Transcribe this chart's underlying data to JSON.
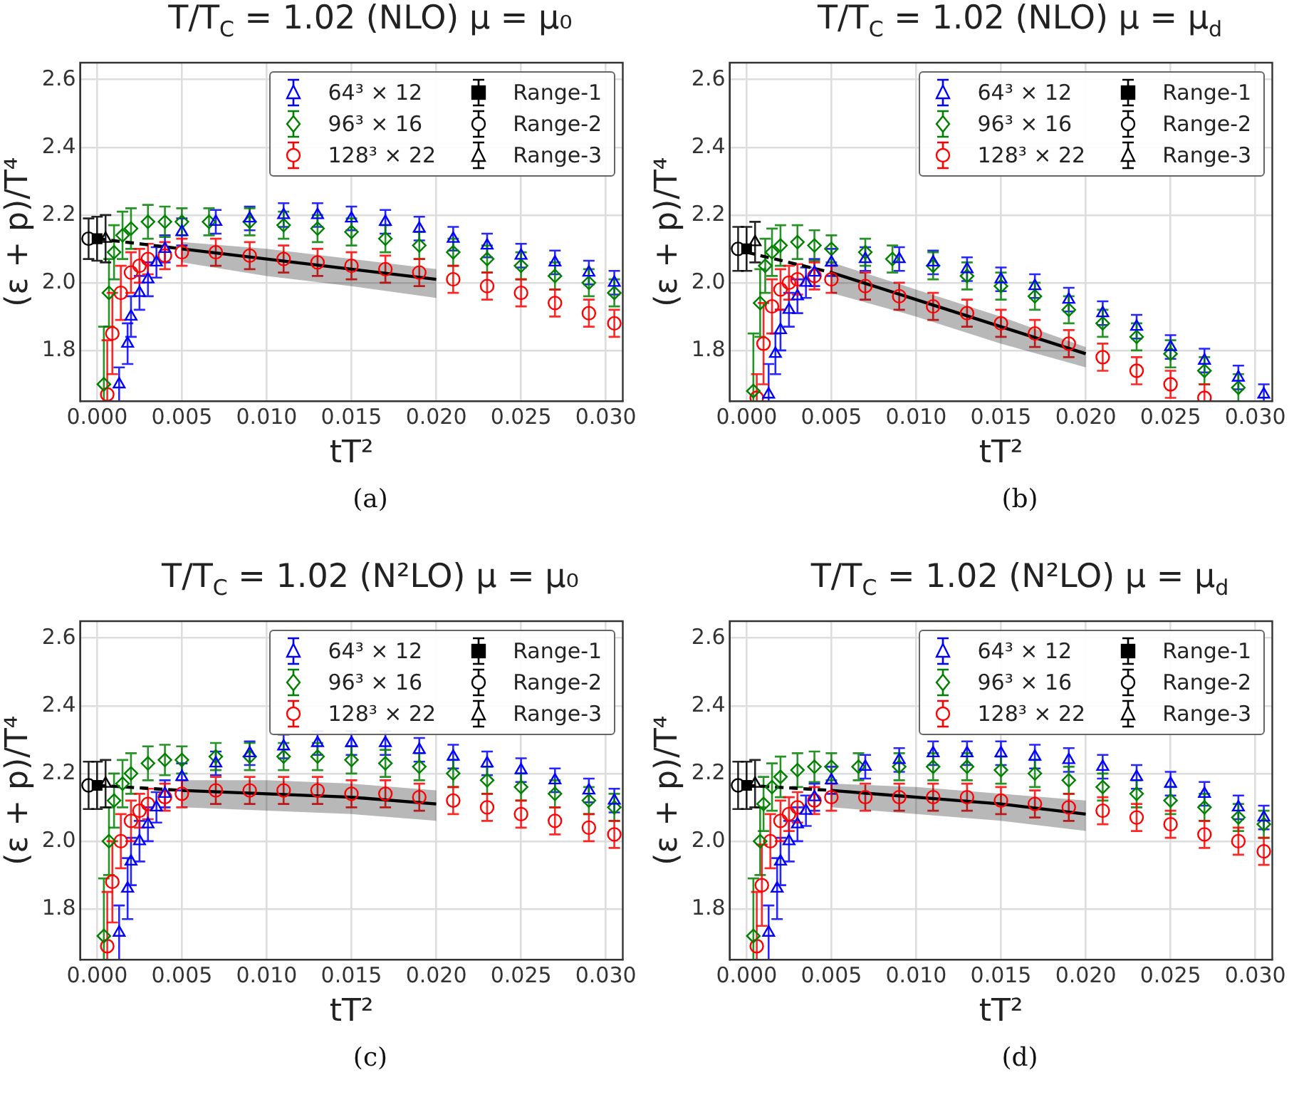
{
  "chart_data": [
    {
      "type": "scatter",
      "title": "T/T$_{C}$ = 1.02 (NLO) μ = μ₀",
      "xlabel": "tT²",
      "ylabel": "(ε + p)/T⁴",
      "xlim": [
        -0.001,
        0.031
      ],
      "ylim": [
        1.65,
        2.65
      ],
      "xticks": [
        {
          "value": 0,
          "label": "0.000"
        },
        {
          "value": 0.005,
          "label": "0.005"
        },
        {
          "value": 0.01,
          "label": "0.010"
        },
        {
          "value": 0.015,
          "label": "0.015"
        },
        {
          "value": 0.02,
          "label": "0.020"
        },
        {
          "value": 0.025,
          "label": "0.025"
        },
        {
          "value": 0.03,
          "label": "0.030"
        }
      ],
      "yticks": [
        {
          "value": 1.8,
          "label": "1.8"
        },
        {
          "value": 2.0,
          "label": "2.0"
        },
        {
          "value": 2.2,
          "label": "2.2"
        },
        {
          "value": 2.4,
          "label": "2.4"
        },
        {
          "value": 2.6,
          "label": "2.6"
        }
      ],
      "grid": true,
      "legend": "top right",
      "annotations": [
        "(a)"
      ],
      "series": [
        {
          "name": "64³ × 12",
          "color": "#0000ff",
          "marker": "triangle",
          "x": [
            0.0013,
            0.0018,
            0.002,
            0.0025,
            0.003,
            0.0035,
            0.004,
            0.005,
            0.007,
            0.009,
            0.011,
            0.013,
            0.015,
            0.017,
            0.019,
            0.021,
            0.023,
            0.025,
            0.027,
            0.029,
            0.0305
          ],
          "values": [
            1.7,
            1.82,
            1.9,
            1.97,
            2.01,
            2.06,
            2.1,
            2.15,
            2.18,
            2.19,
            2.2,
            2.2,
            2.19,
            2.18,
            2.16,
            2.13,
            2.11,
            2.08,
            2.06,
            2.03,
            2.0
          ],
          "errors": [
            0.05,
            0.06,
            0.06,
            0.05,
            0.05,
            0.045,
            0.04,
            0.04,
            0.035,
            0.035,
            0.035,
            0.035,
            0.035,
            0.035,
            0.035,
            0.035,
            0.035,
            0.035,
            0.035,
            0.035,
            0.035
          ]
        },
        {
          "name": "96³ × 16",
          "color": "#008000",
          "marker": "diamond",
          "x": [
            0.0004,
            0.0007,
            0.001,
            0.0015,
            0.002,
            0.003,
            0.004,
            0.005,
            0.0066,
            0.009,
            0.011,
            0.013,
            0.015,
            0.017,
            0.019,
            0.021,
            0.023,
            0.025,
            0.027,
            0.029,
            0.0305
          ],
          "values": [
            1.7,
            1.97,
            2.09,
            2.14,
            2.16,
            2.18,
            2.18,
            2.18,
            2.18,
            2.18,
            2.17,
            2.16,
            2.15,
            2.13,
            2.11,
            2.09,
            2.07,
            2.05,
            2.02,
            2.0,
            1.97
          ],
          "errors": [
            [
              1.65,
              1.87
            ],
            0.1,
            0.08,
            0.07,
            0.06,
            0.05,
            0.045,
            0.04,
            0.04,
            0.04,
            0.04,
            0.04,
            0.04,
            0.04,
            0.04,
            0.04,
            0.04,
            0.04,
            0.04,
            0.04,
            0.04
          ]
        },
        {
          "name": "128³ × 22",
          "color": "#ff0000",
          "marker": "circle",
          "x": [
            0.0006,
            0.0009,
            0.0014,
            0.002,
            0.0025,
            0.003,
            0.004,
            0.005,
            0.007,
            0.009,
            0.011,
            0.013,
            0.015,
            0.017,
            0.019,
            0.021,
            0.023,
            0.025,
            0.027,
            0.029,
            0.0305
          ],
          "values": [
            1.67,
            1.85,
            1.97,
            2.03,
            2.05,
            2.07,
            2.08,
            2.09,
            2.09,
            2.08,
            2.07,
            2.06,
            2.05,
            2.04,
            2.03,
            2.01,
            1.99,
            1.97,
            1.94,
            1.91,
            1.88
          ],
          "errors": [
            [
              1.65,
              1.83
            ],
            0.12,
            0.08,
            0.06,
            0.05,
            0.045,
            0.04,
            0.04,
            0.04,
            0.04,
            0.04,
            0.04,
            0.04,
            0.04,
            0.04,
            0.04,
            0.04,
            0.04,
            0.04,
            0.04,
            0.04
          ]
        },
        {
          "name": "Range-1",
          "color": "#000000",
          "marker": "square",
          "x": [
            0
          ],
          "values": [
            2.13
          ],
          "errors": [
            0.065
          ]
        },
        {
          "name": "Range-2",
          "color": "#000000",
          "marker": "circle",
          "x": [
            -0.0005
          ],
          "values": [
            2.13
          ],
          "errors": [
            0.06
          ]
        },
        {
          "name": "Range-3",
          "color": "#000000",
          "marker": "triangle",
          "x": [
            0.0005
          ],
          "values": [
            2.13
          ],
          "errors": [
            0.07
          ]
        },
        {
          "type": "line",
          "color": "#000000",
          "marker": "none",
          "line_style": "solid",
          "x": [
            0.005,
            0.01,
            0.015,
            0.02
          ],
          "values": [
            2.1,
            2.07,
            2.04,
            2.01
          ],
          "lower": [
            2.06,
            2.02,
            1.99,
            1.955
          ],
          "upper": [
            2.12,
            2.1,
            2.07,
            2.04
          ]
        },
        {
          "type": "line",
          "color": "#000000",
          "marker": "none",
          "line_style": "dashed",
          "x": [
            0,
            0.005
          ],
          "values": [
            2.13,
            2.1
          ]
        }
      ]
    },
    {
      "type": "scatter",
      "title": "T/T$_{C}$ = 1.02 (NLO) μ = μ$_{d}$",
      "xlabel": "tT²",
      "ylabel": "(ε + p)/T⁴",
      "xlim": [
        -0.001,
        0.031
      ],
      "ylim": [
        1.65,
        2.65
      ],
      "xticks": [
        {
          "value": 0,
          "label": "0.000"
        },
        {
          "value": 0.005,
          "label": "0.005"
        },
        {
          "value": 0.01,
          "label": "0.010"
        },
        {
          "value": 0.015,
          "label": "0.015"
        },
        {
          "value": 0.02,
          "label": "0.020"
        },
        {
          "value": 0.025,
          "label": "0.025"
        },
        {
          "value": 0.03,
          "label": "0.030"
        }
      ],
      "yticks": [
        {
          "value": 1.8,
          "label": "1.8"
        },
        {
          "value": 2.0,
          "label": "2.0"
        },
        {
          "value": 2.2,
          "label": "2.2"
        },
        {
          "value": 2.4,
          "label": "2.4"
        },
        {
          "value": 2.6,
          "label": "2.6"
        }
      ],
      "grid": true,
      "legend": "top right",
      "annotations": [
        "(b)"
      ],
      "series": [
        {
          "name": "64³ × 12",
          "color": "#0000ff",
          "marker": "triangle",
          "x": [
            0.0013,
            0.0017,
            0.002,
            0.0025,
            0.003,
            0.0035,
            0.004,
            0.005,
            0.007,
            0.009,
            0.011,
            0.013,
            0.015,
            0.017,
            0.019,
            0.021,
            0.023,
            0.025,
            0.027,
            0.029,
            0.0305
          ],
          "values": [
            1.67,
            1.79,
            1.86,
            1.92,
            1.96,
            2.0,
            2.03,
            2.06,
            2.07,
            2.07,
            2.06,
            2.04,
            2.01,
            1.99,
            1.95,
            1.91,
            1.87,
            1.81,
            1.77,
            1.72,
            1.67
          ],
          "errors": [
            [
              1.65,
              1.76
            ],
            0.06,
            0.06,
            0.05,
            0.05,
            0.045,
            0.04,
            0.04,
            0.035,
            0.035,
            0.035,
            0.035,
            0.035,
            0.035,
            0.035,
            0.035,
            0.035,
            0.035,
            0.035,
            0.035,
            [
              1.65,
              1.7
            ]
          ]
        },
        {
          "name": "96³ × 16",
          "color": "#008000",
          "marker": "diamond",
          "x": [
            0.0004,
            0.0008,
            0.0011,
            0.0015,
            0.002,
            0.003,
            0.004,
            0.005,
            0.007,
            0.0086,
            0.011,
            0.013,
            0.015,
            0.017,
            0.019,
            0.021,
            0.023,
            0.025,
            0.027,
            0.029
          ],
          "values": [
            1.68,
            1.94,
            2.05,
            2.09,
            2.11,
            2.12,
            2.11,
            2.1,
            2.09,
            2.07,
            2.05,
            2.02,
            1.99,
            1.96,
            1.92,
            1.88,
            1.84,
            1.79,
            1.74,
            1.69
          ],
          "errors": [
            [
              1.65,
              1.85
            ],
            0.1,
            0.08,
            0.07,
            0.06,
            0.05,
            0.045,
            0.04,
            0.04,
            0.04,
            0.04,
            0.04,
            0.04,
            0.04,
            0.04,
            0.04,
            0.04,
            0.04,
            0.04,
            0.04
          ]
        },
        {
          "name": "128³ × 22",
          "color": "#ff0000",
          "marker": "circle",
          "x": [
            0.0006,
            0.001,
            0.0015,
            0.002,
            0.0025,
            0.003,
            0.004,
            0.005,
            0.007,
            0.009,
            0.011,
            0.013,
            0.015,
            0.017,
            0.019,
            0.021,
            0.023,
            0.025,
            0.027
          ],
          "values": [
            1.66,
            1.82,
            1.93,
            1.98,
            2.0,
            2.01,
            2.02,
            2.01,
            1.99,
            1.96,
            1.93,
            1.91,
            1.88,
            1.85,
            1.82,
            1.78,
            1.74,
            1.7,
            1.66
          ],
          "errors": [
            [
              1.65,
              1.73
            ],
            0.12,
            0.08,
            0.06,
            0.05,
            0.045,
            0.04,
            0.04,
            0.04,
            0.04,
            0.04,
            0.04,
            0.04,
            0.04,
            0.04,
            0.04,
            0.04,
            0.04,
            [
              1.65,
              1.7
            ]
          ]
        },
        {
          "name": "Range-1",
          "color": "#000000",
          "marker": "square",
          "x": [
            0
          ],
          "values": [
            2.1
          ],
          "errors": [
            0.065
          ]
        },
        {
          "name": "Range-2",
          "color": "#000000",
          "marker": "circle",
          "x": [
            -0.0005
          ],
          "values": [
            2.1
          ],
          "errors": [
            0.065
          ]
        },
        {
          "name": "Range-3",
          "color": "#000000",
          "marker": "triangle",
          "x": [
            0.0005
          ],
          "values": [
            2.12
          ],
          "errors": [
            0.06
          ]
        },
        {
          "type": "line",
          "color": "#000000",
          "marker": "none",
          "line_style": "solid",
          "x": [
            0.005,
            0.01,
            0.015,
            0.02
          ],
          "values": [
            2.03,
            1.95,
            1.87,
            1.79
          ],
          "lower": [
            1.97,
            1.9,
            1.82,
            1.75
          ],
          "upper": [
            2.06,
            1.98,
            1.9,
            1.81
          ]
        },
        {
          "type": "line",
          "color": "#000000",
          "marker": "none",
          "line_style": "dashed",
          "x": [
            0,
            0.005
          ],
          "values": [
            2.09,
            2.03
          ]
        }
      ]
    },
    {
      "type": "scatter",
      "title": "T/T$_{C}$ = 1.02 (N²LO) μ = μ₀",
      "xlabel": "tT²",
      "ylabel": "(ε + p)/T⁴",
      "xlim": [
        -0.001,
        0.031
      ],
      "ylim": [
        1.65,
        2.65
      ],
      "xticks": [
        {
          "value": 0,
          "label": "0.000"
        },
        {
          "value": 0.005,
          "label": "0.005"
        },
        {
          "value": 0.01,
          "label": "0.010"
        },
        {
          "value": 0.015,
          "label": "0.015"
        },
        {
          "value": 0.02,
          "label": "0.020"
        },
        {
          "value": 0.025,
          "label": "0.025"
        },
        {
          "value": 0.03,
          "label": "0.030"
        }
      ],
      "yticks": [
        {
          "value": 1.8,
          "label": "1.8"
        },
        {
          "value": 2.0,
          "label": "2.0"
        },
        {
          "value": 2.2,
          "label": "2.2"
        },
        {
          "value": 2.4,
          "label": "2.4"
        },
        {
          "value": 2.6,
          "label": "2.6"
        }
      ],
      "grid": true,
      "legend": "top right",
      "annotations": [
        "(c)"
      ],
      "series": [
        {
          "name": "64³ × 12",
          "color": "#0000ff",
          "marker": "triangle",
          "x": [
            0.0013,
            0.0018,
            0.002,
            0.0025,
            0.003,
            0.0035,
            0.004,
            0.005,
            0.007,
            0.009,
            0.011,
            0.013,
            0.015,
            0.017,
            0.019,
            0.021,
            0.023,
            0.025,
            0.027,
            0.029,
            0.0305
          ],
          "values": [
            1.73,
            1.86,
            1.94,
            2.0,
            2.05,
            2.1,
            2.14,
            2.19,
            2.23,
            2.26,
            2.28,
            2.29,
            2.29,
            2.29,
            2.27,
            2.25,
            2.23,
            2.21,
            2.18,
            2.15,
            2.12
          ],
          "errors": [
            0.08,
            0.09,
            0.07,
            0.06,
            0.05,
            0.045,
            0.04,
            0.04,
            0.035,
            0.035,
            0.035,
            0.035,
            0.035,
            0.035,
            0.035,
            0.035,
            0.035,
            0.035,
            0.035,
            0.035,
            0.035
          ]
        },
        {
          "name": "96³ × 16",
          "color": "#008000",
          "marker": "diamond",
          "x": [
            0.0004,
            0.0007,
            0.001,
            0.0015,
            0.002,
            0.003,
            0.004,
            0.005,
            0.007,
            0.009,
            0.011,
            0.013,
            0.015,
            0.017,
            0.019,
            0.021,
            0.023,
            0.025,
            0.027,
            0.029,
            0.0305
          ],
          "values": [
            1.72,
            2.0,
            2.12,
            2.17,
            2.2,
            2.23,
            2.24,
            2.24,
            2.25,
            2.25,
            2.25,
            2.25,
            2.24,
            2.23,
            2.22,
            2.2,
            2.18,
            2.16,
            2.14,
            2.12,
            2.1
          ],
          "errors": [
            [
              1.65,
              1.89
            ],
            0.1,
            0.08,
            0.07,
            0.06,
            0.05,
            0.045,
            0.04,
            0.04,
            0.04,
            0.04,
            0.04,
            0.04,
            0.04,
            0.04,
            0.04,
            0.04,
            0.04,
            0.04,
            0.04,
            0.04
          ]
        },
        {
          "name": "128³ × 22",
          "color": "#ff0000",
          "marker": "circle",
          "x": [
            0.0006,
            0.0009,
            0.0014,
            0.002,
            0.0025,
            0.003,
            0.004,
            0.005,
            0.007,
            0.009,
            0.011,
            0.013,
            0.015,
            0.017,
            0.019,
            0.021,
            0.023,
            0.025,
            0.027,
            0.029,
            0.0305
          ],
          "values": [
            1.69,
            1.88,
            2.0,
            2.06,
            2.09,
            2.11,
            2.13,
            2.14,
            2.15,
            2.15,
            2.15,
            2.15,
            2.14,
            2.14,
            2.13,
            2.12,
            2.1,
            2.08,
            2.06,
            2.04,
            2.02
          ],
          "errors": [
            [
              1.65,
              1.85
            ],
            0.12,
            0.08,
            0.06,
            0.05,
            0.045,
            0.04,
            0.04,
            0.04,
            0.04,
            0.04,
            0.04,
            0.04,
            0.04,
            0.04,
            0.04,
            0.04,
            0.04,
            0.04,
            0.04,
            0.04
          ]
        },
        {
          "name": "Range-1",
          "color": "#000000",
          "marker": "square",
          "x": [
            0
          ],
          "values": [
            2.165
          ],
          "errors": [
            0.07
          ]
        },
        {
          "name": "Range-2",
          "color": "#000000",
          "marker": "circle",
          "x": [
            -0.0005
          ],
          "values": [
            2.165
          ],
          "errors": [
            0.07
          ]
        },
        {
          "name": "Range-3",
          "color": "#000000",
          "marker": "triangle",
          "x": [
            0.0005
          ],
          "values": [
            2.17
          ],
          "errors": [
            0.07
          ]
        },
        {
          "type": "line",
          "color": "#000000",
          "marker": "none",
          "line_style": "solid",
          "x": [
            0.005,
            0.01,
            0.015,
            0.02
          ],
          "values": [
            2.15,
            2.14,
            2.13,
            2.11
          ],
          "lower": [
            2.1,
            2.09,
            2.08,
            2.06
          ],
          "upper": [
            2.18,
            2.18,
            2.17,
            2.15
          ]
        },
        {
          "type": "line",
          "color": "#000000",
          "marker": "none",
          "line_style": "dashed",
          "x": [
            0,
            0.005
          ],
          "values": [
            2.165,
            2.15
          ]
        }
      ]
    },
    {
      "type": "scatter",
      "title": "T/T$_{C}$ = 1.02 (N²LO) μ = μ$_{d}$",
      "xlabel": "tT²",
      "ylabel": "(ε + p)/T⁴",
      "xlim": [
        -0.001,
        0.031
      ],
      "ylim": [
        1.65,
        2.65
      ],
      "xticks": [
        {
          "value": 0,
          "label": "0.000"
        },
        {
          "value": 0.005,
          "label": "0.005"
        },
        {
          "value": 0.01,
          "label": "0.010"
        },
        {
          "value": 0.015,
          "label": "0.015"
        },
        {
          "value": 0.02,
          "label": "0.020"
        },
        {
          "value": 0.025,
          "label": "0.025"
        },
        {
          "value": 0.03,
          "label": "0.030"
        }
      ],
      "yticks": [
        {
          "value": 1.8,
          "label": "1.8"
        },
        {
          "value": 2.0,
          "label": "2.0"
        },
        {
          "value": 2.2,
          "label": "2.2"
        },
        {
          "value": 2.4,
          "label": "2.4"
        },
        {
          "value": 2.6,
          "label": "2.6"
        }
      ],
      "grid": true,
      "legend": "top right",
      "annotations": [
        "(d)"
      ],
      "series": [
        {
          "name": "64³ × 12",
          "color": "#0000ff",
          "marker": "triangle",
          "x": [
            0.0013,
            0.0018,
            0.002,
            0.0025,
            0.003,
            0.0035,
            0.004,
            0.005,
            0.007,
            0.009,
            0.011,
            0.013,
            0.015,
            0.017,
            0.019,
            0.021,
            0.023,
            0.025,
            0.027,
            0.029,
            0.0305
          ],
          "values": [
            1.73,
            1.86,
            1.94,
            2.0,
            2.05,
            2.09,
            2.13,
            2.18,
            2.22,
            2.24,
            2.26,
            2.26,
            2.26,
            2.25,
            2.24,
            2.22,
            2.19,
            2.17,
            2.14,
            2.1,
            2.07
          ],
          "errors": [
            0.08,
            0.09,
            0.07,
            0.06,
            0.05,
            0.045,
            0.04,
            0.04,
            0.035,
            0.035,
            0.035,
            0.035,
            0.035,
            0.035,
            0.035,
            0.035,
            0.035,
            0.035,
            0.035,
            0.035,
            0.035
          ]
        },
        {
          "name": "96³ × 16",
          "color": "#008000",
          "marker": "diamond",
          "x": [
            0.0004,
            0.0008,
            0.001,
            0.0015,
            0.002,
            0.003,
            0.004,
            0.005,
            0.0066,
            0.009,
            0.011,
            0.013,
            0.015,
            0.017,
            0.019,
            0.021,
            0.023,
            0.025,
            0.027,
            0.029,
            0.0305
          ],
          "values": [
            1.72,
            2.0,
            2.11,
            2.16,
            2.19,
            2.21,
            2.22,
            2.22,
            2.22,
            2.22,
            2.22,
            2.22,
            2.21,
            2.2,
            2.18,
            2.16,
            2.14,
            2.12,
            2.1,
            2.07,
            2.05
          ],
          "errors": [
            [
              1.65,
              1.89
            ],
            0.1,
            0.08,
            0.07,
            0.06,
            0.05,
            0.045,
            0.04,
            0.04,
            0.04,
            0.04,
            0.04,
            0.04,
            0.04,
            0.04,
            0.04,
            0.04,
            0.04,
            0.04,
            0.04,
            0.04
          ]
        },
        {
          "name": "128³ × 22",
          "color": "#ff0000",
          "marker": "circle",
          "x": [
            0.0006,
            0.0009,
            0.0014,
            0.002,
            0.0025,
            0.003,
            0.004,
            0.005,
            0.007,
            0.009,
            0.011,
            0.013,
            0.015,
            0.017,
            0.019,
            0.021,
            0.023,
            0.025,
            0.027,
            0.029,
            0.0305
          ],
          "values": [
            1.69,
            1.87,
            2.0,
            2.06,
            2.08,
            2.1,
            2.12,
            2.13,
            2.13,
            2.13,
            2.13,
            2.13,
            2.12,
            2.11,
            2.1,
            2.09,
            2.07,
            2.05,
            2.02,
            2.0,
            1.97
          ],
          "errors": [
            [
              1.65,
              1.85
            ],
            0.12,
            0.08,
            0.06,
            0.05,
            0.045,
            0.04,
            0.04,
            0.04,
            0.04,
            0.04,
            0.04,
            0.04,
            0.04,
            0.04,
            0.04,
            0.04,
            0.04,
            0.04,
            0.04,
            0.04
          ]
        },
        {
          "name": "Range-1",
          "color": "#000000",
          "marker": "square",
          "x": [
            0
          ],
          "values": [
            2.165
          ],
          "errors": [
            0.07
          ]
        },
        {
          "name": "Range-2",
          "color": "#000000",
          "marker": "circle",
          "x": [
            -0.0005
          ],
          "values": [
            2.165
          ],
          "errors": [
            0.07
          ]
        },
        {
          "name": "Range-3",
          "color": "#000000",
          "marker": "triangle",
          "x": [
            0.0005
          ],
          "values": [
            2.17
          ],
          "errors": [
            0.07
          ]
        },
        {
          "type": "line",
          "color": "#000000",
          "marker": "none",
          "line_style": "solid",
          "x": [
            0.005,
            0.01,
            0.015,
            0.02
          ],
          "values": [
            2.15,
            2.13,
            2.11,
            2.08
          ],
          "lower": [
            2.1,
            2.08,
            2.06,
            2.03
          ],
          "upper": [
            2.17,
            2.16,
            2.14,
            2.12
          ]
        },
        {
          "type": "line",
          "color": "#000000",
          "marker": "none",
          "line_style": "dashed",
          "x": [
            0,
            0.005
          ],
          "values": [
            2.165,
            2.15
          ]
        }
      ]
    }
  ]
}
